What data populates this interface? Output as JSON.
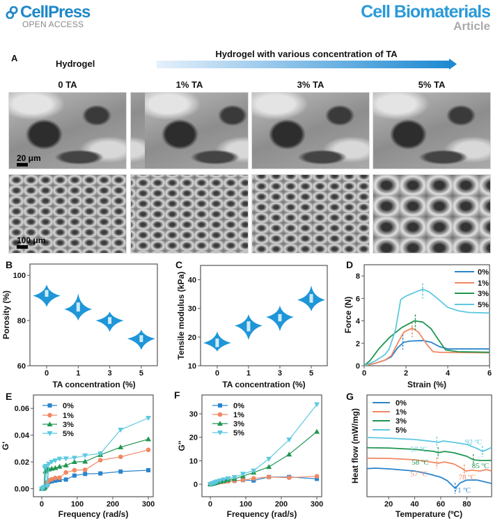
{
  "header": {
    "publisher": "CellPress",
    "open_access": "OPEN ACCESS",
    "journal": "Cell Biomaterials",
    "article_type": "Article",
    "brand_color": "#1e88c8"
  },
  "panel_a": {
    "letter": "A",
    "left_title": "Hydrogel",
    "arrow_title": "Hydrogel with various concentration of TA",
    "columns": [
      "0 TA",
      "1% TA",
      "3% TA",
      "5% TA"
    ],
    "scale_top": "20 μm",
    "scale_bottom": "100 μm"
  },
  "colors": {
    "0%": "#2a84cc",
    "1%": "#f08863",
    "3%": "#1f9651",
    "5%": "#5cc8e0",
    "violin": "#1e96d8",
    "box": "#cdeaf7"
  },
  "chart_data": [
    {
      "panel": "B",
      "type": "violin",
      "xlabel": "TA concentration (%)",
      "ylabel": "Porosity (%)",
      "categories": [
        "0",
        "1",
        "3",
        "5"
      ],
      "ylim": [
        60,
        105
      ],
      "yticks": [
        60,
        80,
        100
      ],
      "violins": [
        {
          "category": "0",
          "min": 86,
          "max": 96,
          "mode": 91,
          "box": [
            90.5,
            93.5
          ]
        },
        {
          "category": "1",
          "min": 80,
          "max": 92,
          "mode": 85,
          "box": [
            84,
            88
          ]
        },
        {
          "category": "3",
          "min": 75,
          "max": 84,
          "mode": 80,
          "box": [
            78.5,
            81.5
          ]
        },
        {
          "category": "5",
          "min": 67,
          "max": 76,
          "mode": 72,
          "box": [
            70.5,
            73.5
          ]
        }
      ]
    },
    {
      "panel": "C",
      "type": "violin",
      "xlabel": "TA concentration (%)",
      "ylabel": "Tensile modulus (kPa)",
      "categories": [
        "0",
        "1",
        "3",
        "5"
      ],
      "ylim": [
        10,
        45
      ],
      "yticks": [
        10,
        20,
        30,
        40
      ],
      "violins": [
        {
          "category": "0",
          "min": 15,
          "max": 22,
          "mode": 18,
          "box": [
            16.5,
            19.5
          ]
        },
        {
          "category": "1",
          "min": 19,
          "max": 28,
          "mode": 24,
          "box": [
            22,
            25.5
          ]
        },
        {
          "category": "3",
          "min": 22,
          "max": 31,
          "mode": 27,
          "box": [
            25.5,
            28
          ]
        },
        {
          "category": "5",
          "min": 29,
          "max": 38,
          "mode": 33,
          "box": [
            32,
            35
          ]
        }
      ]
    },
    {
      "panel": "D",
      "type": "line",
      "xlabel": "Strain (%)",
      "ylabel": "Force (N)",
      "xlim": [
        0,
        6
      ],
      "ylim": [
        0,
        9
      ],
      "xticks": [
        0,
        2,
        4,
        6
      ],
      "yticks": [
        0,
        2,
        4,
        6,
        8
      ],
      "legend": "top-right",
      "series": [
        {
          "name": "0%",
          "x": [
            0,
            0.5,
            1,
            1.3,
            1.6,
            1.9,
            2.2,
            2.8,
            3.2,
            3.6,
            4,
            6
          ],
          "y": [
            0,
            0.2,
            0.5,
            0.8,
            1.6,
            2.1,
            2.2,
            2.25,
            2.1,
            1.7,
            1.5,
            1.5
          ],
          "peak_strain": 1.85
        },
        {
          "name": "1%",
          "x": [
            0,
            0.5,
            1,
            1.3,
            1.6,
            1.9,
            2.3,
            2.6,
            3.0,
            3.3,
            3.6,
            6
          ],
          "y": [
            0,
            0.2,
            0.5,
            0.9,
            2.0,
            3.0,
            3.35,
            3.0,
            1.9,
            1.25,
            1.2,
            1.15
          ],
          "peak_strain": 2.3
        },
        {
          "name": "3%",
          "x": [
            0,
            0.3,
            0.7,
            1.2,
            1.8,
            2.4,
            2.8,
            3.2,
            3.6,
            3.9,
            4.5,
            6
          ],
          "y": [
            0,
            0.5,
            1.5,
            2.5,
            3.4,
            4.0,
            3.9,
            3.3,
            2.2,
            1.4,
            1.25,
            1.2
          ],
          "peak_strain": 2.45
        },
        {
          "name": "5%",
          "x": [
            0,
            0.5,
            1,
            1.2,
            1.5,
            1.75,
            2,
            2.5,
            2.8,
            3.1,
            3.5,
            4,
            4.5,
            5,
            6
          ],
          "y": [
            0,
            0.4,
            1.0,
            1.5,
            3.2,
            5.9,
            6.2,
            6.6,
            6.8,
            6.6,
            6.0,
            5.2,
            4.9,
            4.75,
            4.7
          ],
          "peak_strain": 2.8
        }
      ]
    },
    {
      "panel": "E",
      "type": "line",
      "xlabel": "Frequency (rad/s)",
      "ylabel": "G'",
      "xlim": [
        -23.5,
        313.7
      ],
      "ylim": [
        -0.006,
        0.07
      ],
      "xticks": [
        0,
        100,
        200,
        300
      ],
      "yticks": [
        0.0,
        0.02,
        0.04,
        0.06
      ],
      "ytick_labels": [
        "0.00",
        "0.02",
        "0.04",
        "0.06"
      ],
      "legend": "top-left",
      "series": [
        {
          "name": "0%",
          "marker": "square",
          "x": [
            0,
            2,
            4,
            6,
            8,
            10,
            13,
            16,
            20,
            28,
            38,
            50,
            68,
            92,
            122,
            165,
            222,
            300
          ],
          "y": [
            0,
            0,
            0,
            0.0005,
            0.001,
            0.001,
            0.002,
            0.003,
            0.005,
            0.0055,
            0.006,
            0.0065,
            0.0068,
            0.0098,
            0.011,
            0.0114,
            0.0128,
            0.0138
          ]
        },
        {
          "name": "1%",
          "marker": "circle",
          "x": [
            0,
            2,
            4,
            6,
            8,
            10,
            13,
            16,
            20,
            28,
            38,
            50,
            68,
            92,
            122,
            165,
            222,
            300
          ],
          "y": [
            0,
            0,
            0,
            0.0005,
            0.001,
            0.002,
            0.004,
            0.005,
            0.0063,
            0.007,
            0.008,
            0.0082,
            0.0121,
            0.0138,
            0.0141,
            0.0213,
            0.0238,
            0.029
          ]
        },
        {
          "name": "3%",
          "marker": "triangle-up",
          "x": [
            0,
            2,
            4,
            6,
            8,
            10,
            13,
            16,
            20,
            28,
            38,
            50,
            68,
            92,
            122,
            165,
            222,
            300
          ],
          "y": [
            0,
            0,
            0,
            0.0005,
            0.001,
            0.013,
            0.014,
            0.0145,
            0.0145,
            0.015,
            0.0155,
            0.0165,
            0.0175,
            0.02,
            0.0203,
            0.0253,
            0.031,
            0.037
          ]
        },
        {
          "name": "5%",
          "marker": "triangle-down",
          "x": [
            0,
            2,
            4,
            6,
            8,
            10,
            13,
            16,
            20,
            28,
            38,
            50,
            68,
            92,
            122,
            165,
            222,
            300
          ],
          "y": [
            0,
            0,
            0.0005,
            0.001,
            0.0155,
            0.0165,
            0.017,
            0.002,
            0.0185,
            0.02,
            0.021,
            0.0223,
            0.0225,
            0.023,
            0.0248,
            0.0263,
            0.044,
            0.0528
          ]
        }
      ]
    },
    {
      "panel": "F",
      "type": "line",
      "xlabel": "Frequency (rad/s)",
      "ylabel": "G''",
      "xlim": [
        -23.5,
        313.7
      ],
      "ylim": [
        -5.3,
        38
      ],
      "xticks": [
        0,
        100,
        200,
        300
      ],
      "yticks": [
        0,
        10,
        20,
        30
      ],
      "legend": "top-left",
      "series": [
        {
          "name": "0%",
          "marker": "square",
          "x": [
            0,
            5,
            10,
            15,
            20,
            28,
            38,
            50,
            68,
            92,
            122,
            165,
            222,
            300
          ],
          "y": [
            0,
            0.2,
            0.4,
            0.6,
            0.8,
            1.0,
            1.2,
            1.4,
            1.5,
            1.8,
            1.6,
            3.1,
            3.1,
            2.3
          ]
        },
        {
          "name": "1%",
          "marker": "circle",
          "x": [
            0,
            5,
            10,
            15,
            20,
            28,
            38,
            50,
            68,
            92,
            122,
            165,
            222,
            300
          ],
          "y": [
            0,
            0.2,
            0.4,
            0.5,
            0.7,
            0.9,
            1.1,
            1.3,
            1.4,
            1.8,
            2.5,
            3.1,
            2.8,
            3.4
          ]
        },
        {
          "name": "3%",
          "marker": "triangle-up",
          "x": [
            0,
            5,
            10,
            15,
            20,
            28,
            38,
            50,
            68,
            92,
            122,
            165,
            222,
            300
          ],
          "y": [
            0,
            0.2,
            0.4,
            0.6,
            0.9,
            1.2,
            1.5,
            1.9,
            2.3,
            3.5,
            5.0,
            7.4,
            12.7,
            22.4
          ]
        },
        {
          "name": "5%",
          "marker": "triangle-down",
          "x": [
            0,
            5,
            10,
            15,
            20,
            28,
            38,
            50,
            68,
            92,
            122,
            165,
            222,
            300
          ],
          "y": [
            0,
            0.3,
            0.6,
            0.9,
            1.2,
            1.6,
            2.0,
            2.5,
            3.0,
            4.4,
            5.8,
            10.8,
            19.0,
            34.0
          ]
        }
      ]
    },
    {
      "panel": "G",
      "type": "line",
      "xlabel": "Temperature (ºC)",
      "ylabel": "Heat flow (mW/mg)",
      "xlim": [
        3.4,
        99
      ],
      "ylim": [
        0,
        100
      ],
      "xticks": [
        20,
        40,
        60,
        80
      ],
      "yticks": [],
      "legend": "top-left",
      "series": [
        {
          "name": "0%",
          "x": [
            3,
            10,
            20,
            40,
            50,
            60,
            65,
            71,
            75,
            80,
            88,
            99
          ],
          "y": [
            27.6,
            28.1,
            27.4,
            25.3,
            22.6,
            19.2,
            15.8,
            8.2,
            13.7,
            16.4,
            16.4,
            13.0
          ]
        },
        {
          "name": "1%",
          "x": [
            3,
            20,
            40,
            55,
            58,
            63,
            70,
            76,
            79,
            84,
            90,
            95,
            99
          ],
          "y": [
            37.9,
            37.7,
            36.3,
            33.6,
            32.9,
            34.2,
            32.2,
            28.1,
            25.3,
            26.0,
            25.3,
            26.7,
            25.3
          ]
        },
        {
          "name": "3%",
          "x": [
            3,
            20,
            40,
            55,
            58,
            63,
            70,
            80,
            85,
            90,
            99
          ],
          "y": [
            48.2,
            47.9,
            46.6,
            44.5,
            43.2,
            44.5,
            43.2,
            39.7,
            36.3,
            35.6,
            35.6
          ]
        },
        {
          "name": "5%",
          "x": [
            3,
            20,
            40,
            55,
            58,
            62,
            70,
            80,
            88,
            92,
            96,
            99
          ],
          "y": [
            58.2,
            57.5,
            56.2,
            54.1,
            53.4,
            54.8,
            53.4,
            51.4,
            47.3,
            44.5,
            46.6,
            48.6
          ]
        }
      ],
      "annotations": [
        {
          "series": "5%",
          "temp": 57,
          "text": "57 ºC"
        },
        {
          "series": "5%",
          "temp": 92,
          "text": "92 ºC"
        },
        {
          "series": "3%",
          "temp": 58,
          "text": "58 ºC"
        },
        {
          "series": "3%",
          "temp": 85,
          "text": "85 ºC"
        },
        {
          "series": "1%",
          "temp": 57,
          "text": "57 ºC"
        },
        {
          "series": "1%",
          "temp": 78,
          "text": "78 ºC"
        },
        {
          "series": "0%",
          "temp": 71,
          "text": "71 ºC"
        }
      ]
    }
  ]
}
